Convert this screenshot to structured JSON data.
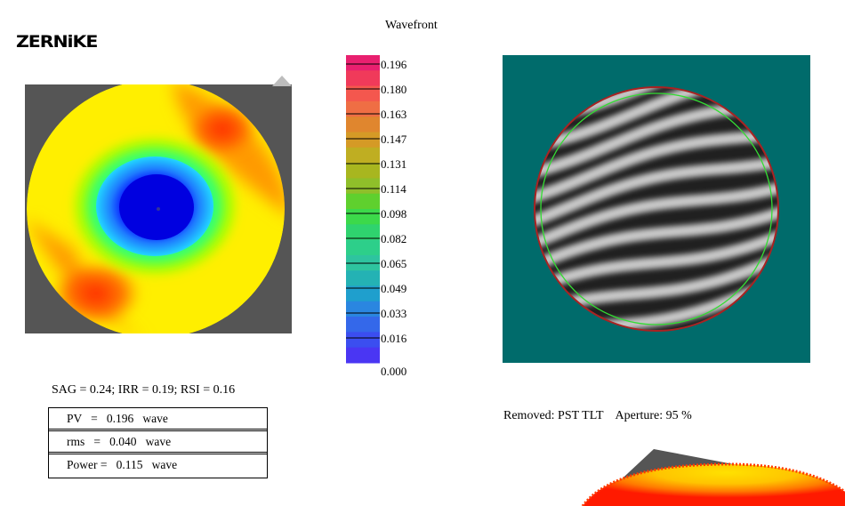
{
  "logo": {
    "text": "ZERNiKE"
  },
  "legend": {
    "title": "Wavefront",
    "ticks": [
      "0.196",
      "0.180",
      "0.163",
      "0.147",
      "0.131",
      "0.114",
      "0.098",
      "0.082",
      "0.065",
      "0.049",
      "0.033",
      "0.016",
      "0.000"
    ],
    "colors": [
      "#e8206f",
      "#f03a5a",
      "#f4574e",
      "#ef6e44",
      "#e0862e",
      "#d59a26",
      "#bfae22",
      "#a8b61f",
      "#8fbf2a",
      "#5fd02e",
      "#3cd94a",
      "#2fd36e",
      "#2dcf8a",
      "#2ec49f",
      "#24b2b4",
      "#1f9fcd",
      "#2a86e0",
      "#3468ea",
      "#3b4ef0",
      "#4a36f3"
    ]
  },
  "stats": {
    "text": "SAG = 0.24; IRR = 0.19; RSI = 0.16"
  },
  "metrics": [
    {
      "label": "PV   =   0.196   wave"
    },
    {
      "label": "rms   =   0.040   wave"
    },
    {
      "label": "Power =   0.115   wave"
    }
  ],
  "removed": {
    "text": "Removed: PST TLT    Aperture: 95 %"
  },
  "colors": {
    "map_background": "#555555",
    "fringe_background": "#006b6b",
    "aperture_circle": "#33dd33",
    "edge_circle": "#cc2222"
  },
  "icons": {
    "panel_corner": "triangle-tab-icon"
  }
}
